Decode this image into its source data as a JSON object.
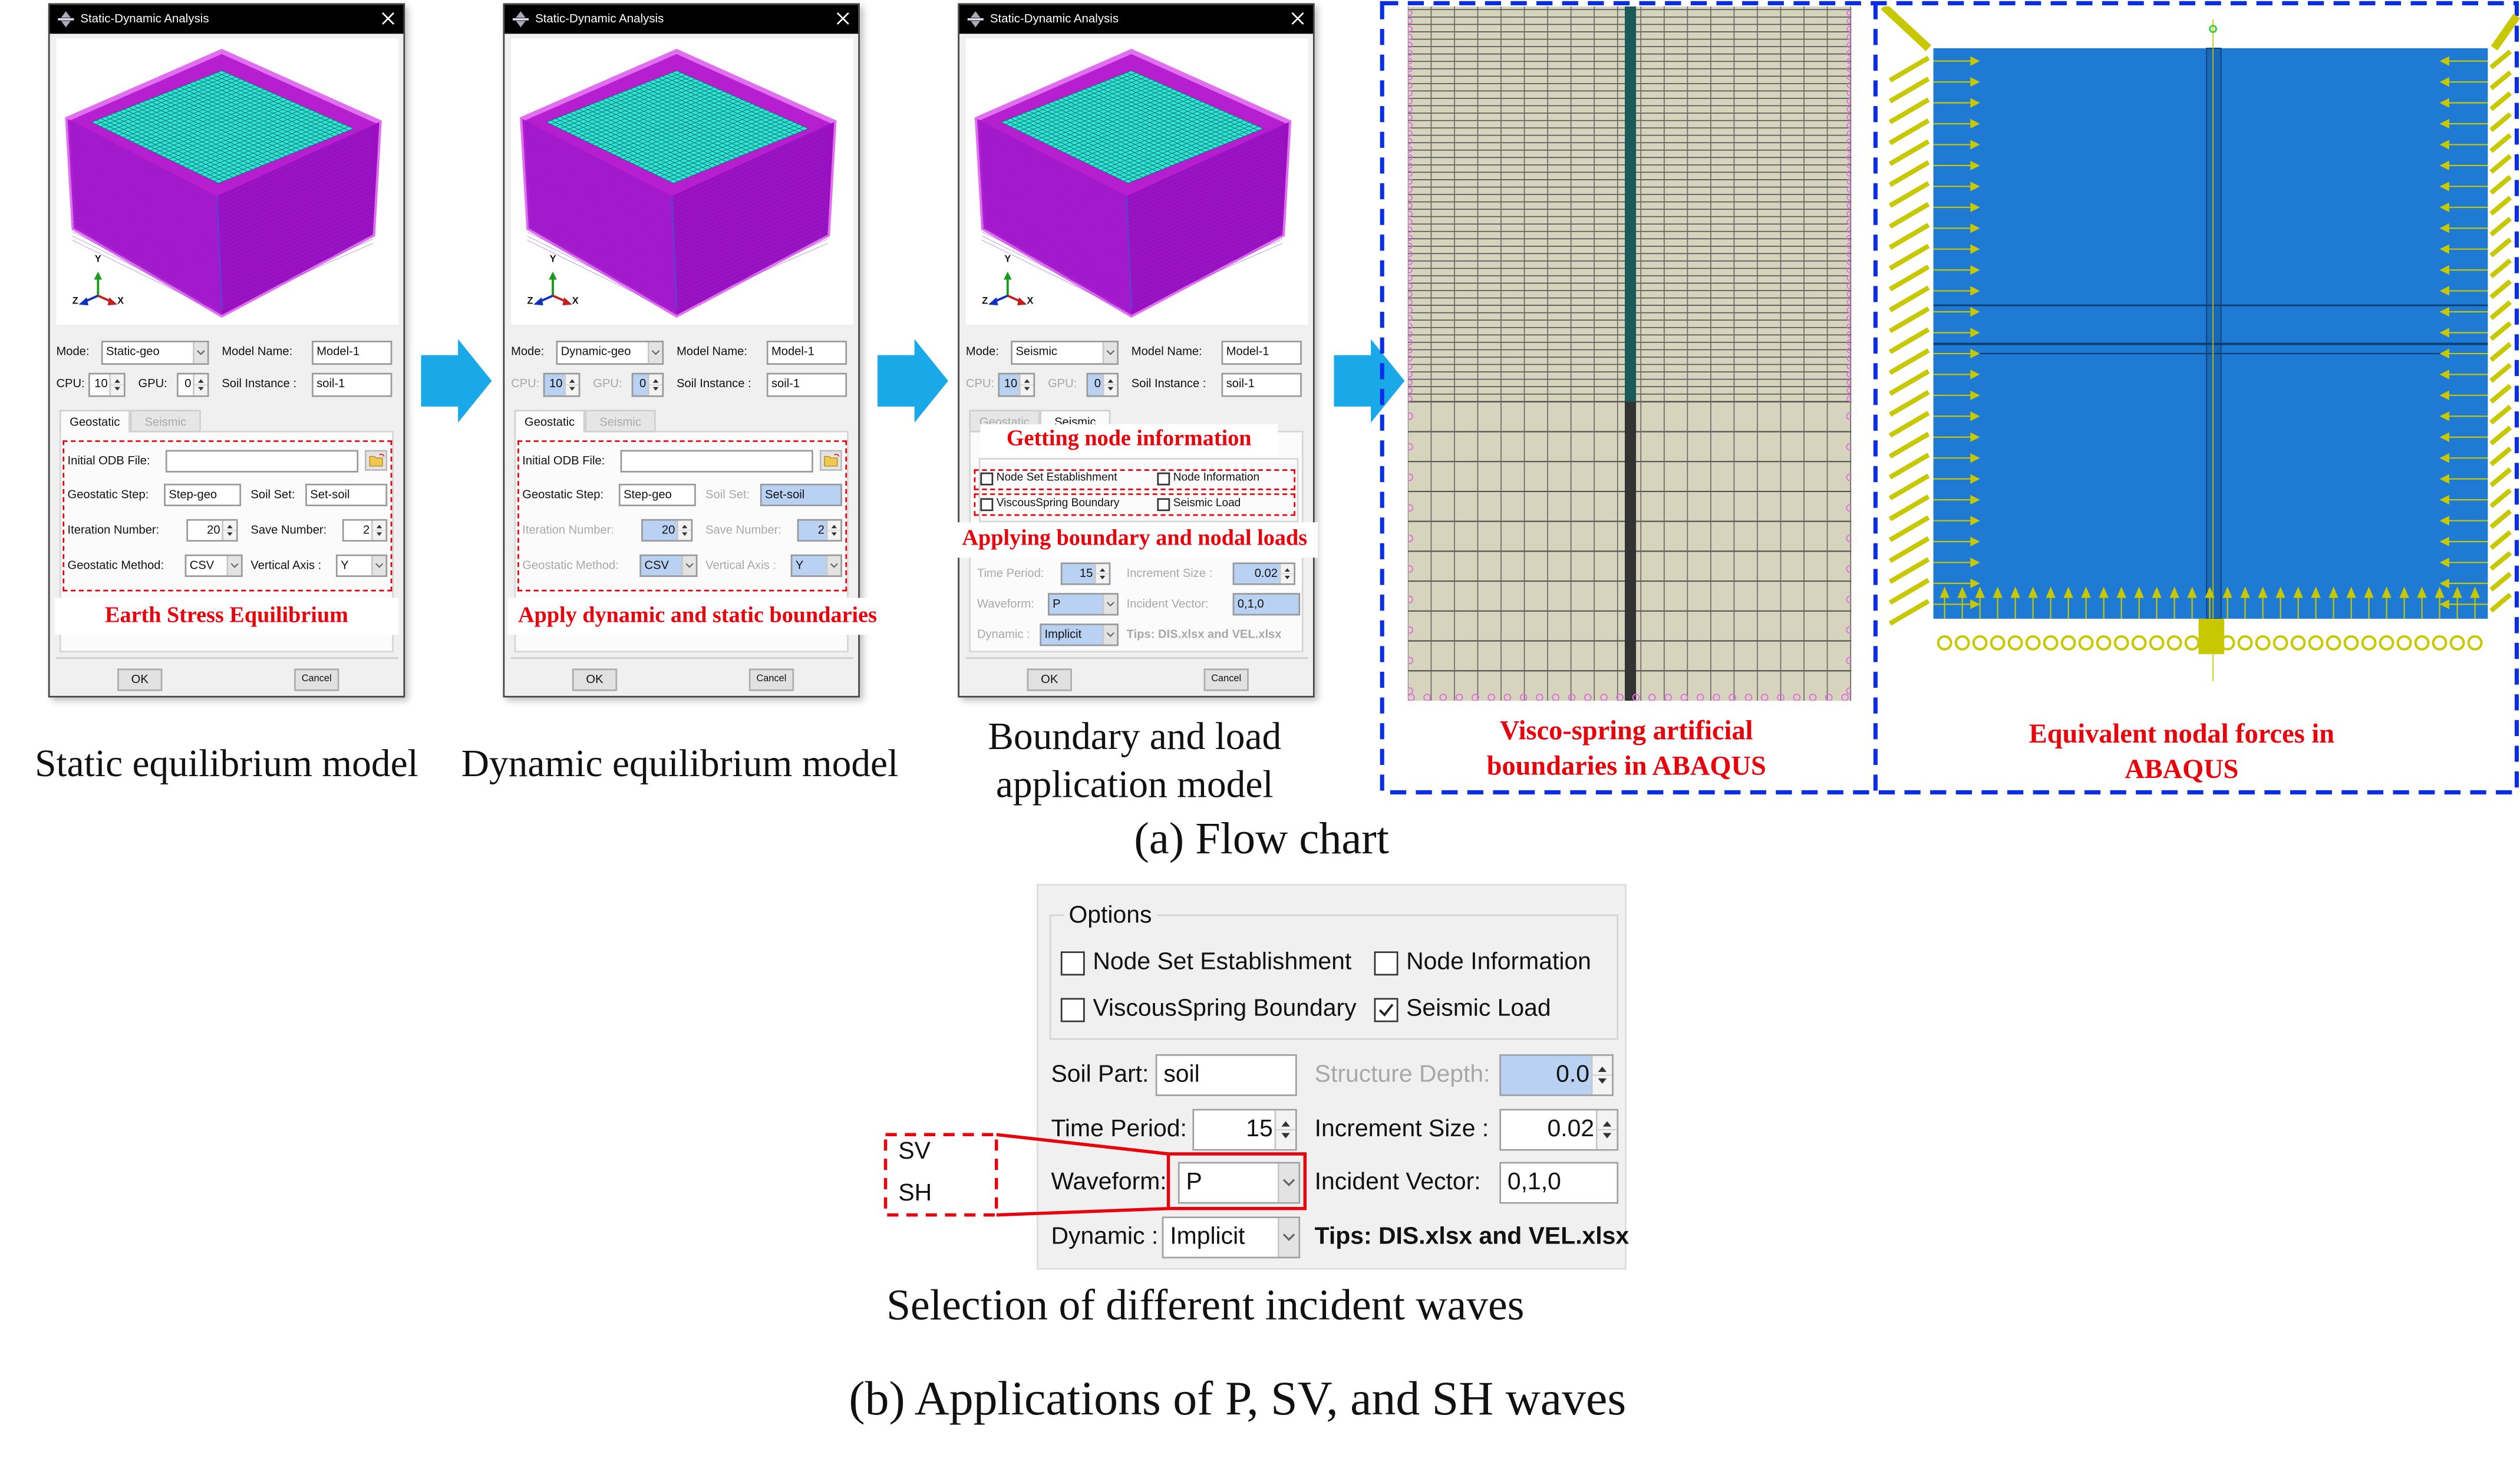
{
  "dialogs": [
    {
      "title": "Static-Dynamic Analysis",
      "mode_label": "Mode:",
      "mode": "Static-geo",
      "model_name_label": "Model Name:",
      "model_name": "Model-1",
      "cpu_label": "CPU:",
      "cpu": "10",
      "gpu_label": "GPU:",
      "gpu": "0",
      "soil_instance_label": "Soil Instance :",
      "soil_instance": "soil-1",
      "tabs": [
        "Geostatic",
        "Seismic"
      ],
      "active_tab": 0,
      "highlight": false,
      "axes": {
        "y": "Y",
        "z": "Z",
        "x": "X"
      },
      "geostatic": {
        "odb_label": "Initial ODB File:",
        "odb": "",
        "step_label": "Geostatic Step:",
        "step": "Step-geo",
        "soil_set_label": "Soil Set:",
        "soil_set": "Set-soil",
        "iteration_label": "Iteration Number:",
        "iteration": "20",
        "save_label": "Save Number:",
        "save": "2",
        "method_label": "Geostatic Method:",
        "method": "CSV",
        "axis_label": "Vertical Axis :",
        "axis": "Y"
      },
      "ok": "OK",
      "cancel": "Cancel"
    },
    {
      "title": "Static-Dynamic Analysis",
      "mode_label": "Mode:",
      "mode": "Dynamic-geo",
      "model_name_label": "Model Name:",
      "model_name": "Model-1",
      "cpu_label": "CPU:",
      "cpu": "10",
      "gpu_label": "GPU:",
      "gpu": "0",
      "soil_instance_label": "Soil Instance :",
      "soil_instance": "soil-1",
      "tabs": [
        "Geostatic",
        "Seismic"
      ],
      "active_tab": 0,
      "highlight": true,
      "axes": {
        "y": "Y",
        "z": "Z",
        "x": "X"
      },
      "geostatic": {
        "odb_label": "Initial ODB File:",
        "odb": "",
        "step_label": "Geostatic Step:",
        "step": "Step-geo",
        "soil_set_label": "Soil Set:",
        "soil_set": "Set-soil",
        "iteration_label": "Iteration Number:",
        "iteration": "20",
        "save_label": "Save Number:",
        "save": "2",
        "method_label": "Geostatic Method:",
        "method": "CSV",
        "axis_label": "Vertical Axis :",
        "axis": "Y"
      },
      "ok": "OK",
      "cancel": "Cancel"
    },
    {
      "title": "Static-Dynamic Analysis",
      "mode_label": "Mode:",
      "mode": "Seismic",
      "model_name_label": "Model Name:",
      "model_name": "Model-1",
      "cpu_label": "CPU:",
      "cpu": "10",
      "gpu_label": "GPU:",
      "gpu": "0",
      "soil_instance_label": "Soil Instance :",
      "soil_instance": "soil-1",
      "tabs": [
        "Geostatic",
        "Seismic"
      ],
      "active_tab": 1,
      "highlight": true,
      "axes": {
        "y": "Y",
        "z": "Z",
        "x": "X"
      },
      "seismic": {
        "checkboxes": [
          {
            "label": "Node Set Establishment",
            "checked": false
          },
          {
            "label": "Node Information",
            "checked": false
          },
          {
            "label": "ViscousSpring Boundary",
            "checked": false
          },
          {
            "label": "Seismic Load",
            "checked": false
          }
        ],
        "time_period_label": "Time Period:",
        "time_period": "15",
        "increment_label": "Increment Size :",
        "increment": "0.02",
        "waveform_label": "Waveform:",
        "waveform": "P",
        "incident_label": "Incident Vector:",
        "incident": "0,1,0",
        "dynamic_label": "Dynamic :",
        "dynamic": "Implicit",
        "tips": "Tips: DIS.xlsx and VEL.xlsx"
      },
      "ok": "OK",
      "cancel": "Cancel"
    }
  ],
  "annotations": {
    "earth_stress": "Earth Stress Equilibrium",
    "apply_boundaries": "Apply dynamic and static boundaries",
    "node_info": "Getting node information",
    "boundary_loads": "Applying boundary and nodal loads",
    "visco_1": "Visco-spring artificial",
    "visco_2": "boundaries in ABAQUS",
    "nodal_1": "Equivalent nodal  forces in",
    "nodal_2": "ABAQUS"
  },
  "captions": {
    "static_model": "Static equilibrium model",
    "dynamic_model": "Dynamic equilibrium model",
    "boundary_1": "Boundary and load",
    "boundary_2": "application model",
    "part_a": "(a) Flow chart",
    "incident_waves": "Selection of different incident waves",
    "part_b": "(b) Applications of P, SV, and SH waves"
  },
  "options_panel": {
    "group_title": "Options",
    "checkboxes": [
      {
        "label": "Node Set Establishment",
        "checked": false
      },
      {
        "label": "Node Information",
        "checked": false
      },
      {
        "label": "ViscousSpring Boundary",
        "checked": false
      },
      {
        "label": "Seismic Load",
        "checked": true
      }
    ],
    "soil_part_label": "Soil Part:",
    "soil_part": "soil",
    "structure_depth_label": "Structure Depth:",
    "structure_depth": "0.0",
    "time_period_label": "Time Period:",
    "time_period": "15",
    "increment_label": "Increment Size :",
    "increment": "0.02",
    "waveform_label": "Waveform:",
    "waveform": "P",
    "incident_label": "Incident Vector:",
    "incident": "0,1,0",
    "dynamic_label": "Dynamic :",
    "dynamic": "Implicit",
    "tips": "Tips: DIS.xlsx and VEL.xlsx",
    "wave_options": [
      "SV",
      "SH"
    ]
  },
  "colors": {
    "accent_red": "#e8000b",
    "arrow_cyan": "#1aa9e8",
    "dashed_blue": "#0a2ee6",
    "model_blue": "#1f7ad4",
    "load_yellow": "#c8c800"
  }
}
